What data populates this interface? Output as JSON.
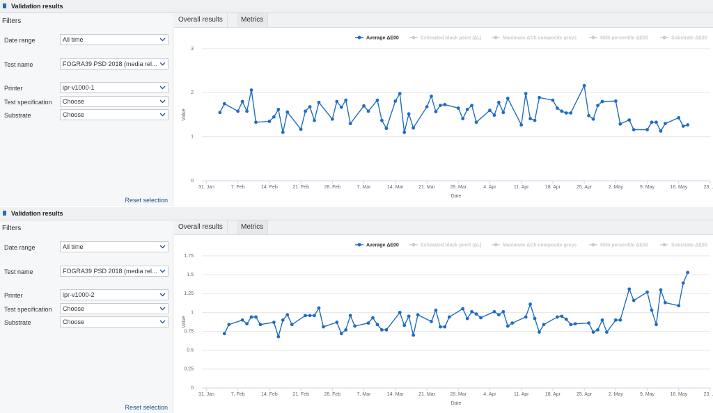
{
  "panels": [
    {
      "header": "Validation results",
      "filters_title": "Filters",
      "filters": [
        {
          "label": "Date range",
          "value": "All time"
        },
        {
          "label": "Test name",
          "value": "FOGRA39 PSD 2018 (media rel..."
        },
        {
          "label": "Printer",
          "value": "ipr-v1000-1"
        },
        {
          "label": "Test specification",
          "value": "Choose"
        },
        {
          "label": "Substrate",
          "value": "Choose"
        }
      ],
      "reset": "Reset selection",
      "tabs": [
        "Overall results",
        "Metrics"
      ],
      "active_tab": 1,
      "chart_data": {
        "type": "line",
        "x_label": "Date",
        "y_label": "Value",
        "x": [
          34,
          35,
          38,
          39,
          40,
          41,
          42,
          45,
          46,
          47,
          48,
          49,
          52,
          53,
          54,
          55,
          56,
          59,
          60,
          61,
          62,
          63,
          66,
          67,
          69,
          70,
          71,
          73,
          74,
          75,
          76,
          77,
          80,
          81,
          82,
          83,
          84,
          87,
          88,
          89,
          90,
          91,
          94,
          95,
          96,
          97,
          98,
          101,
          102,
          103,
          104,
          105,
          108,
          109,
          110,
          111,
          112,
          115,
          116,
          117,
          118,
          119,
          122,
          123,
          125,
          126,
          129,
          130,
          131,
          132,
          133,
          136,
          137,
          138
        ],
        "series": [
          {
            "name": "Average ΔE00",
            "color": "#1f6dc2",
            "values": [
              1.55,
              1.75,
              1.58,
              1.8,
              1.58,
              2.06,
              1.33,
              1.35,
              1.45,
              1.62,
              1.1,
              1.56,
              1.17,
              1.58,
              1.68,
              1.37,
              1.78,
              1.4,
              1.8,
              1.67,
              1.83,
              1.3,
              1.7,
              1.58,
              1.83,
              1.37,
              1.19,
              1.81,
              1.98,
              1.1,
              1.52,
              1.2,
              1.68,
              1.92,
              1.57,
              1.71,
              1.73,
              1.65,
              1.41,
              1.62,
              1.71,
              1.33,
              1.6,
              1.49,
              1.78,
              1.55,
              1.87,
              1.27,
              1.98,
              1.41,
              1.37,
              1.89,
              1.83,
              1.65,
              1.58,
              1.54,
              1.54,
              2.16,
              1.48,
              1.4,
              1.71,
              1.8,
              1.81,
              1.29,
              1.38,
              1.16,
              1.16,
              1.33,
              1.33,
              1.13,
              1.3,
              1.43,
              1.24,
              1.27
            ]
          },
          {
            "name": "Estimated black point |ΔL|",
            "color": "#cccccc",
            "hidden": true
          },
          {
            "name": "Maximum ΔCh composite greys",
            "color": "#cccccc",
            "hidden": true
          },
          {
            "name": "95th percentile ΔE00",
            "color": "#cccccc",
            "hidden": true
          },
          {
            "name": "Substrate ΔE00",
            "color": "#cccccc",
            "hidden": true
          }
        ],
        "xlim": [
          30,
          143
        ],
        "xticks": [
          {
            "value": 31,
            "label": "31. Jan"
          },
          {
            "value": 38,
            "label": "7. Feb"
          },
          {
            "value": 45,
            "label": "14. Feb"
          },
          {
            "value": 52,
            "label": "21. Feb"
          },
          {
            "value": 59,
            "label": "28. Feb"
          },
          {
            "value": 66,
            "label": "7. Mar"
          },
          {
            "value": 73,
            "label": "14. Mar"
          },
          {
            "value": 80,
            "label": "21. Mar"
          },
          {
            "value": 87,
            "label": "28. Mar"
          },
          {
            "value": 94,
            "label": "4. Apr"
          },
          {
            "value": 101,
            "label": "11. Apr"
          },
          {
            "value": 108,
            "label": "18. Apr"
          },
          {
            "value": 115,
            "label": "25. Apr"
          },
          {
            "value": 122,
            "label": "2. May"
          },
          {
            "value": 129,
            "label": "9. May"
          },
          {
            "value": 136,
            "label": "16. May"
          },
          {
            "value": 143,
            "label": "23. …"
          }
        ],
        "ylim": [
          0,
          3
        ],
        "yticks": [
          0,
          1,
          2,
          3
        ],
        "grid": true
      }
    },
    {
      "header": "Validation results",
      "filters_title": "Filters",
      "filters": [
        {
          "label": "Date range",
          "value": "All time"
        },
        {
          "label": "Test name",
          "value": "FOGRA39 PSD 2018 (media rel..."
        },
        {
          "label": "Printer",
          "value": "ipr-v1000-2"
        },
        {
          "label": "Test specification",
          "value": "Choose"
        },
        {
          "label": "Substrate",
          "value": "Choose"
        }
      ],
      "reset": "Reset selection",
      "tabs": [
        "Overall results",
        "Metrics"
      ],
      "active_tab": 1,
      "chart_data": {
        "type": "line",
        "x_label": "Date",
        "y_label": "Value",
        "x": [
          35,
          36,
          39,
          40,
          41,
          42,
          43,
          46,
          47,
          48,
          49,
          50,
          53,
          54,
          55,
          56,
          57,
          60,
          61,
          62,
          63,
          64,
          67,
          68,
          69,
          70,
          71,
          74,
          75,
          76,
          77,
          78,
          81,
          82,
          83,
          84,
          85,
          88,
          89,
          90,
          91,
          92,
          95,
          96,
          97,
          98,
          99,
          102,
          103,
          104,
          105,
          106,
          109,
          110,
          111,
          112,
          113,
          116,
          117,
          118,
          119,
          120,
          122,
          123,
          125,
          126,
          129,
          130,
          131,
          132,
          133,
          136,
          137,
          138
        ],
        "series": [
          {
            "name": "Average ΔE00",
            "color": "#1f6dc2",
            "values": [
              0.72,
              0.84,
              0.9,
              0.85,
              0.94,
              0.94,
              0.84,
              0.87,
              0.68,
              0.9,
              0.97,
              0.84,
              0.96,
              0.96,
              0.96,
              1.06,
              0.81,
              0.87,
              0.72,
              0.77,
              0.96,
              0.82,
              0.86,
              0.93,
              0.84,
              0.77,
              0.77,
              1.0,
              0.83,
              0.95,
              0.7,
              0.97,
              0.88,
              1.03,
              0.81,
              0.81,
              0.94,
              1.05,
              0.92,
              1.01,
              0.98,
              0.93,
              1.01,
              0.97,
              1.01,
              0.82,
              0.86,
              0.94,
              1.11,
              0.92,
              0.74,
              0.84,
              0.94,
              0.95,
              0.91,
              0.84,
              0.85,
              0.86,
              0.74,
              0.77,
              0.9,
              0.74,
              0.9,
              0.9,
              1.31,
              1.16,
              1.27,
              1.03,
              0.84,
              1.3,
              1.13,
              1.09,
              1.39,
              1.53
            ]
          },
          {
            "name": "Estimated black point |ΔL|",
            "color": "#cccccc",
            "hidden": true
          },
          {
            "name": "Maximum ΔCh composite greys",
            "color": "#cccccc",
            "hidden": true
          },
          {
            "name": "95th percentile ΔE00",
            "color": "#cccccc",
            "hidden": true
          },
          {
            "name": "Substrate ΔE00",
            "color": "#cccccc",
            "hidden": true
          }
        ],
        "xlim": [
          30,
          143
        ],
        "xticks": [
          {
            "value": 31,
            "label": "31. Jan"
          },
          {
            "value": 38,
            "label": "7. Feb"
          },
          {
            "value": 45,
            "label": "14. Feb"
          },
          {
            "value": 52,
            "label": "21. Feb"
          },
          {
            "value": 59,
            "label": "28. Feb"
          },
          {
            "value": 66,
            "label": "7. Mar"
          },
          {
            "value": 73,
            "label": "14. Mar"
          },
          {
            "value": 80,
            "label": "21. Mar"
          },
          {
            "value": 87,
            "label": "28. Mar"
          },
          {
            "value": 94,
            "label": "4. Apr"
          },
          {
            "value": 101,
            "label": "11. Apr"
          },
          {
            "value": 108,
            "label": "18. Apr"
          },
          {
            "value": 115,
            "label": "25. Apr"
          },
          {
            "value": 122,
            "label": "2. May"
          },
          {
            "value": 129,
            "label": "9. May"
          },
          {
            "value": 136,
            "label": "16. May"
          },
          {
            "value": 143,
            "label": "23. …"
          }
        ],
        "ylim": [
          0,
          1.75
        ],
        "yticks": [
          0,
          0.25,
          0.5,
          0.75,
          1,
          1.25,
          1.5,
          1.75
        ],
        "grid": true
      }
    }
  ]
}
